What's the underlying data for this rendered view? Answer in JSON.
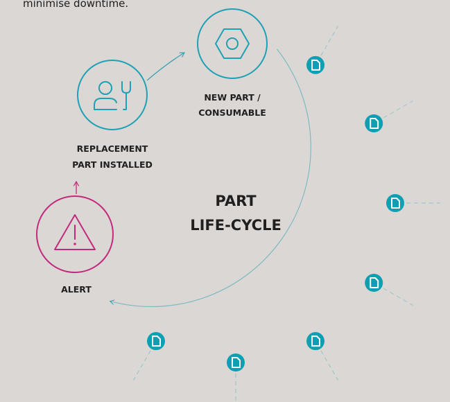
{
  "intro_text": "minimise downtime.",
  "nodes": [
    {
      "label": [
        "NEW PART /",
        "CONSUMABLE"
      ]
    },
    {
      "label": [
        "REPLACEMENT",
        "PART INSTALLED"
      ]
    },
    {
      "label": [
        "ALERT"
      ]
    }
  ],
  "center_label": [
    "PART",
    "LIFE-CYCLE"
  ]
}
